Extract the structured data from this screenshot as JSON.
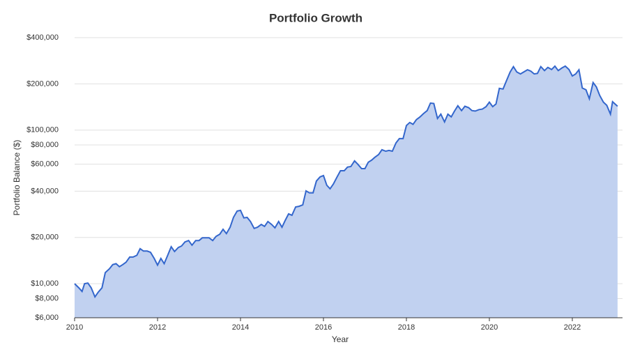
{
  "chart_data": {
    "type": "area",
    "title": "Portfolio Growth",
    "x_label": "Year",
    "y_label": "Portfolio Balance ($)",
    "log_y": true,
    "grid": true,
    "xlim": [
      2010,
      2023.21
    ],
    "xticks": [
      2010,
      2012,
      2014,
      2016,
      2018,
      2020,
      2022
    ],
    "ylim": [
      6000,
      400000
    ],
    "yticks": [
      {
        "value": 6000,
        "label": "$6,000"
      },
      {
        "value": 8000,
        "label": "$8,000"
      },
      {
        "value": 10000,
        "label": "$10,000"
      },
      {
        "value": 20000,
        "label": "$20,000"
      },
      {
        "value": 40000,
        "label": "$40,000"
      },
      {
        "value": 60000,
        "label": "$60,000"
      },
      {
        "value": 80000,
        "label": "$80,000"
      },
      {
        "value": 100000,
        "label": "$100,000"
      },
      {
        "value": 200000,
        "label": "$200,000"
      },
      {
        "value": 400000,
        "label": "$400,000"
      }
    ],
    "series": [
      {
        "name": "Portfolio Balance",
        "color": "#3366cc",
        "fill": "#c1d1f0",
        "x": [
          2010.0,
          2010.1,
          2010.18,
          2010.24,
          2010.32,
          2010.4,
          2010.49,
          2010.57,
          2010.66,
          2010.74,
          2010.84,
          2010.92,
          2011.0,
          2011.08,
          2011.16,
          2011.24,
          2011.33,
          2011.41,
          2011.5,
          2011.58,
          2011.66,
          2011.75,
          2011.83,
          2011.92,
          2012.0,
          2012.08,
          2012.16,
          2012.24,
          2012.33,
          2012.41,
          2012.5,
          2012.58,
          2012.66,
          2012.75,
          2012.83,
          2012.92,
          2013.0,
          2013.08,
          2013.16,
          2013.24,
          2013.33,
          2013.41,
          2013.5,
          2013.58,
          2013.66,
          2013.75,
          2013.83,
          2013.92,
          2014.0,
          2014.08,
          2014.16,
          2014.24,
          2014.33,
          2014.41,
          2014.5,
          2014.58,
          2014.66,
          2014.75,
          2014.83,
          2014.92,
          2015.0,
          2015.08,
          2015.16,
          2015.24,
          2015.33,
          2015.41,
          2015.5,
          2015.58,
          2015.66,
          2015.75,
          2015.83,
          2015.92,
          2016.0,
          2016.08,
          2016.16,
          2016.24,
          2016.33,
          2016.41,
          2016.5,
          2016.58,
          2016.66,
          2016.75,
          2016.83,
          2016.92,
          2017.0,
          2017.08,
          2017.16,
          2017.24,
          2017.33,
          2017.41,
          2017.5,
          2017.58,
          2017.66,
          2017.75,
          2017.83,
          2017.92,
          2018.0,
          2018.08,
          2018.16,
          2018.24,
          2018.33,
          2018.41,
          2018.5,
          2018.58,
          2018.66,
          2018.75,
          2018.83,
          2018.92,
          2019.0,
          2019.08,
          2019.16,
          2019.24,
          2019.33,
          2019.41,
          2019.5,
          2019.58,
          2019.66,
          2019.75,
          2019.83,
          2019.92,
          2020.0,
          2020.08,
          2020.16,
          2020.24,
          2020.33,
          2020.41,
          2020.5,
          2020.58,
          2020.66,
          2020.75,
          2020.83,
          2020.92,
          2021.0,
          2021.08,
          2021.16,
          2021.24,
          2021.33,
          2021.41,
          2021.5,
          2021.58,
          2021.66,
          2021.75,
          2021.83,
          2021.92,
          2022.0,
          2022.08,
          2022.16,
          2022.24,
          2022.33,
          2022.41,
          2022.5,
          2022.58,
          2022.66,
          2022.75,
          2022.83,
          2022.92,
          2022.97,
          2023.09
        ],
        "values": [
          10000,
          9400,
          8900,
          10000,
          10100,
          9400,
          8200,
          8800,
          9400,
          11800,
          12500,
          13300,
          13500,
          12900,
          13300,
          13800,
          14900,
          14900,
          15300,
          16900,
          16300,
          16300,
          16000,
          14600,
          13200,
          14600,
          13500,
          15200,
          17400,
          16200,
          17200,
          17600,
          18700,
          19100,
          17800,
          19100,
          19100,
          19900,
          19900,
          19900,
          19100,
          20300,
          21000,
          22600,
          21200,
          23300,
          27000,
          29700,
          30000,
          26800,
          27000,
          25400,
          22900,
          23300,
          24300,
          23600,
          25400,
          24300,
          23100,
          25400,
          23300,
          25900,
          28500,
          27900,
          31600,
          31900,
          32600,
          40200,
          39000,
          39000,
          46600,
          49600,
          50600,
          43700,
          41500,
          44600,
          49600,
          54400,
          54400,
          57400,
          57900,
          63000,
          59900,
          56100,
          56100,
          61800,
          63700,
          66500,
          69300,
          74500,
          72900,
          73700,
          72900,
          82600,
          88000,
          88000,
          107000,
          112000,
          109000,
          117000,
          122000,
          128000,
          134000,
          150000,
          149000,
          119000,
          127000,
          113000,
          127000,
          122000,
          133000,
          144000,
          134000,
          143000,
          140000,
          134000,
          133000,
          136000,
          137000,
          142000,
          152000,
          142000,
          148000,
          187000,
          185000,
          209000,
          239000,
          259000,
          239000,
          232000,
          239000,
          247000,
          242000,
          232000,
          234000,
          259000,
          244000,
          256000,
          248000,
          261000,
          244000,
          254000,
          261000,
          248000,
          225000,
          232000,
          247000,
          188000,
          183000,
          160000,
          204000,
          191000,
          168000,
          152000,
          145000,
          127000,
          153000,
          143000
        ]
      }
    ]
  }
}
